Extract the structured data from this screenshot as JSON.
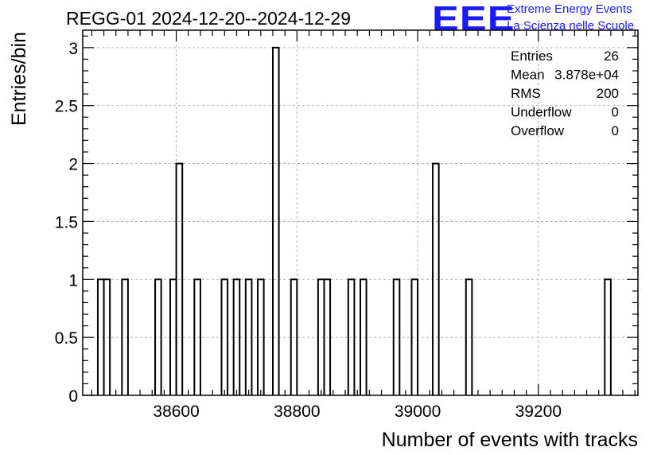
{
  "title": "REGG-01 2024-12-20--2024-12-29",
  "logo": {
    "mark": "EEE",
    "line1": "Extreme Energy Events",
    "line2": "La Scienza nelle Scuole",
    "color": "#1a1aff"
  },
  "stats": [
    {
      "label": "Entries",
      "value": "26"
    },
    {
      "label": "Mean",
      "value": "3.878e+04"
    },
    {
      "label": "RMS",
      "value": "200"
    },
    {
      "label": "Underflow",
      "value": "0"
    },
    {
      "label": "Overflow",
      "value": "0"
    }
  ],
  "chart_data": {
    "type": "bar",
    "title": "REGG-01 2024-12-20--2024-12-29",
    "xlabel": "Number of events with tracks",
    "ylabel": "Entries/bin",
    "xlim": [
      38445,
      39365
    ],
    "ylim": [
      0,
      3.15
    ],
    "x_ticks": [
      38600,
      38800,
      39000,
      39200
    ],
    "y_ticks": [
      0,
      0.5,
      1,
      1.5,
      2,
      2.5,
      3
    ],
    "y_tick_labels": [
      "0",
      "0.5",
      "1",
      "1.5",
      "2",
      "2.5",
      "3"
    ],
    "bin_width": 10,
    "grid": true,
    "bins": [
      {
        "x": 38470,
        "value": 1
      },
      {
        "x": 38480,
        "value": 1
      },
      {
        "x": 38510,
        "value": 1
      },
      {
        "x": 38565,
        "value": 1
      },
      {
        "x": 38590,
        "value": 1
      },
      {
        "x": 38600,
        "value": 2
      },
      {
        "x": 38630,
        "value": 1
      },
      {
        "x": 38675,
        "value": 1
      },
      {
        "x": 38695,
        "value": 1
      },
      {
        "x": 38715,
        "value": 1
      },
      {
        "x": 38735,
        "value": 1
      },
      {
        "x": 38760,
        "value": 3
      },
      {
        "x": 38790,
        "value": 1
      },
      {
        "x": 38835,
        "value": 1
      },
      {
        "x": 38845,
        "value": 1
      },
      {
        "x": 38885,
        "value": 1
      },
      {
        "x": 38905,
        "value": 1
      },
      {
        "x": 38960,
        "value": 1
      },
      {
        "x": 38990,
        "value": 1
      },
      {
        "x": 39025,
        "value": 2
      },
      {
        "x": 39080,
        "value": 1
      },
      {
        "x": 39310,
        "value": 1
      }
    ]
  }
}
